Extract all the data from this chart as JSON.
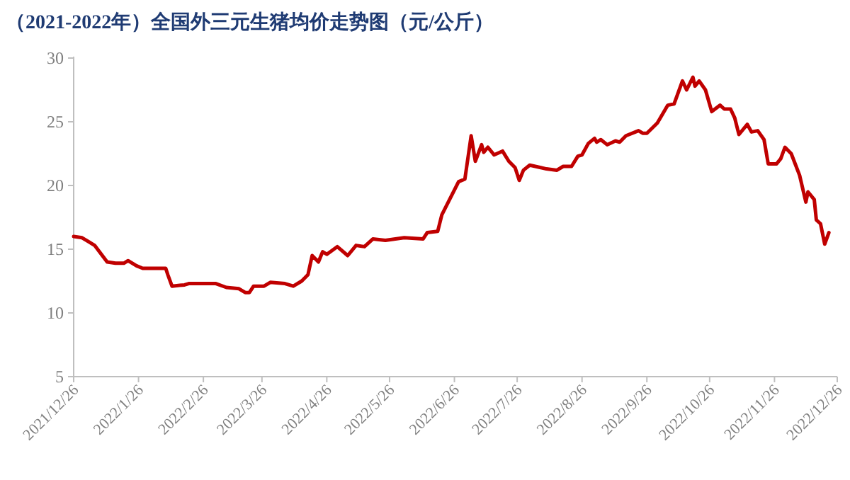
{
  "chart_data": {
    "type": "line",
    "title": "（2021-2022年）全国外三元生猪均价走势图（元/公斤）",
    "x": [
      "2021-12-26",
      "2021-12-30",
      "2022-01-02",
      "2022-01-05",
      "2022-01-11",
      "2022-01-15",
      "2022-01-19",
      "2022-01-21",
      "2022-01-25",
      "2022-01-28",
      "2022-02-08",
      "2022-02-09",
      "2022-02-11",
      "2022-02-17",
      "2022-02-19",
      "2022-03-04",
      "2022-03-09",
      "2022-03-15",
      "2022-03-18",
      "2022-03-20",
      "2022-03-22",
      "2022-03-27",
      "2022-03-30",
      "2022-04-06",
      "2022-04-10",
      "2022-04-14",
      "2022-04-17",
      "2022-04-19",
      "2022-04-22",
      "2022-04-24",
      "2022-04-26",
      "2022-05-01",
      "2022-05-06",
      "2022-05-10",
      "2022-05-14",
      "2022-05-18",
      "2022-05-24",
      "2022-06-02",
      "2022-06-11",
      "2022-06-13",
      "2022-06-18",
      "2022-06-20",
      "2022-06-28",
      "2022-07-01",
      "2022-07-04",
      "2022-07-06",
      "2022-07-09",
      "2022-07-10",
      "2022-07-12",
      "2022-07-15",
      "2022-07-19",
      "2022-07-22",
      "2022-07-25",
      "2022-07-27",
      "2022-07-29",
      "2022-08-01",
      "2022-08-09",
      "2022-08-14",
      "2022-08-17",
      "2022-08-21",
      "2022-08-24",
      "2022-08-26",
      "2022-08-29",
      "2022-09-01",
      "2022-09-02",
      "2022-09-04",
      "2022-09-07",
      "2022-09-11",
      "2022-09-13",
      "2022-09-16",
      "2022-09-22",
      "2022-09-24",
      "2022-09-26",
      "2022-10-01",
      "2022-10-06",
      "2022-10-09",
      "2022-10-13",
      "2022-10-15",
      "2022-10-18",
      "2022-10-19",
      "2022-10-21",
      "2022-10-24",
      "2022-10-27",
      "2022-10-31",
      "2022-11-02",
      "2022-11-05",
      "2022-11-07",
      "2022-11-09",
      "2022-11-13",
      "2022-11-15",
      "2022-11-18",
      "2022-11-21",
      "2022-11-23",
      "2022-11-27",
      "2022-11-29",
      "2022-12-01",
      "2022-12-04",
      "2022-12-08",
      "2022-12-11",
      "2022-12-12",
      "2022-12-15",
      "2022-12-16",
      "2022-12-18",
      "2022-12-20",
      "2022-12-22"
    ],
    "series": [
      {
        "color": "#c00000",
        "values": [
          16.0,
          15.9,
          15.6,
          15.3,
          14.0,
          13.9,
          13.9,
          14.1,
          13.7,
          13.5,
          13.5,
          13.0,
          12.1,
          12.2,
          12.3,
          12.3,
          12.0,
          11.9,
          11.6,
          11.6,
          12.1,
          12.1,
          12.4,
          12.3,
          12.1,
          12.5,
          13.0,
          14.5,
          14.0,
          14.8,
          14.6,
          15.2,
          14.5,
          15.3,
          15.2,
          15.8,
          15.7,
          15.9,
          15.8,
          16.3,
          16.4,
          17.7,
          20.3,
          20.5,
          23.9,
          21.9,
          23.2,
          22.6,
          23.0,
          22.4,
          22.7,
          21.9,
          21.4,
          20.4,
          21.2,
          21.6,
          21.3,
          21.2,
          21.5,
          21.5,
          22.3,
          22.4,
          23.3,
          23.7,
          23.4,
          23.6,
          23.2,
          23.5,
          23.4,
          23.9,
          24.3,
          24.1,
          24.1,
          24.9,
          26.3,
          26.4,
          28.2,
          27.5,
          28.5,
          27.8,
          28.2,
          27.5,
          25.8,
          26.3,
          26.0,
          26.0,
          25.3,
          24.0,
          24.8,
          24.2,
          24.3,
          23.6,
          21.7,
          21.7,
          22.1,
          23.0,
          22.5,
          20.8,
          18.7,
          19.5,
          18.9,
          17.3,
          17.0,
          15.4,
          16.3
        ]
      }
    ],
    "xlim": [
      "2021-12-26",
      "2022-12-26"
    ],
    "xticks": [
      {
        "value": "2021-12-26",
        "label": "2021/12/26"
      },
      {
        "value": "2022-01-26",
        "label": "2022/1/26"
      },
      {
        "value": "2022-02-26",
        "label": "2022/2/26"
      },
      {
        "value": "2022-03-26",
        "label": "2022/3/26"
      },
      {
        "value": "2022-04-26",
        "label": "2022/4/26"
      },
      {
        "value": "2022-05-26",
        "label": "2022/5/26"
      },
      {
        "value": "2022-06-26",
        "label": "2022/6/26"
      },
      {
        "value": "2022-07-26",
        "label": "2022/7/26"
      },
      {
        "value": "2022-08-26",
        "label": "2022/8/26"
      },
      {
        "value": "2022-09-26",
        "label": "2022/9/26"
      },
      {
        "value": "2022-10-26",
        "label": "2022/10/26"
      },
      {
        "value": "2022-11-26",
        "label": "2022/11/26"
      },
      {
        "value": "2022-12-26",
        "label": "2022/12/26"
      }
    ],
    "ylim": [
      5,
      30
    ],
    "yticks": [
      5,
      10,
      15,
      20,
      25,
      30
    ],
    "line_style": "solid"
  }
}
